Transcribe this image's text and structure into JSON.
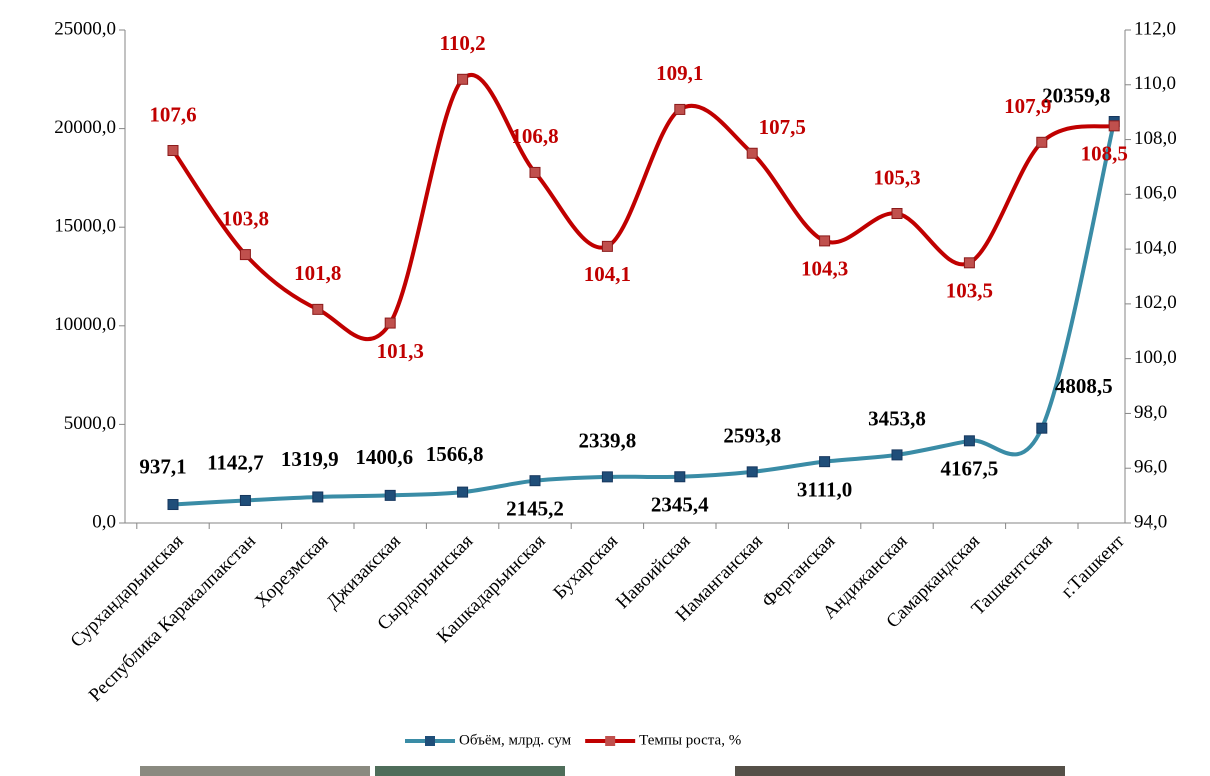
{
  "chart_data": {
    "type": "line",
    "categories": [
      "Сурхандарьинская",
      "Республика Каракалпакстан",
      "Хорезмская",
      "Джизакская",
      "Сырдарьинская",
      "Кашкадарьинская",
      "Бухарская",
      "Навоийская",
      "Наманганская",
      "Ферганская",
      "Андижанская",
      "Самаркандская",
      "Ташкентская",
      "г.Ташкент"
    ],
    "series": [
      {
        "name": "Объём, млрд. сум",
        "color": "#3a8ca6",
        "marker_color": "#1f4e79",
        "values": [
          937.1,
          1142.7,
          1319.9,
          1400.6,
          1566.8,
          2145.2,
          2339.8,
          2345.4,
          2593.8,
          3111.0,
          3453.8,
          4167.5,
          4808.5,
          20359.8
        ],
        "value_labels": [
          "937,1",
          "1142,7",
          "1319,9",
          "1400,6",
          "1566,8",
          "2145,2",
          "2339,8",
          "2345,4",
          "2593,8",
          "3111,0",
          "3453,8",
          "4167,5",
          "4808,5",
          "20359,8"
        ],
        "label_color": "#000000"
      },
      {
        "name": "Темпы роста, %",
        "color": "#c00000",
        "marker_color": "#c0504d",
        "axis": "y2",
        "values": [
          107.6,
          103.8,
          101.8,
          101.3,
          110.2,
          106.8,
          104.1,
          109.1,
          107.5,
          104.3,
          105.3,
          103.5,
          107.9,
          108.5
        ],
        "value_labels": [
          "107,6",
          "103,8",
          "101,8",
          "101,3",
          "110,2",
          "106,8",
          "104,1",
          "109,1",
          "107,5",
          "104,3",
          "105,3",
          "103,5",
          "107,9",
          "108,5"
        ],
        "label_color": "#c00000"
      }
    ],
    "ylim": [
      0,
      25000
    ],
    "yticks": [
      {
        "value": 0,
        "label": "0,0"
      },
      {
        "value": 5000,
        "label": "5000,0"
      },
      {
        "value": 10000,
        "label": "10000,0"
      },
      {
        "value": 15000,
        "label": "15000,0"
      },
      {
        "value": 20000,
        "label": "20000,0"
      },
      {
        "value": 25000,
        "label": "25000,0"
      }
    ],
    "y2lim": [
      94,
      112
    ],
    "y2ticks": [
      {
        "value": 94,
        "label": "94,0"
      },
      {
        "value": 96,
        "label": "96,0"
      },
      {
        "value": 98,
        "label": "98,0"
      },
      {
        "value": 100,
        "label": "100,0"
      },
      {
        "value": 102,
        "label": "102,0"
      },
      {
        "value": 104,
        "label": "104,0"
      },
      {
        "value": 106,
        "label": "106,0"
      },
      {
        "value": 108,
        "label": "108,0"
      },
      {
        "value": 110,
        "label": "110,0"
      },
      {
        "value": 112,
        "label": "112,0"
      }
    ],
    "legend": "bottom"
  }
}
